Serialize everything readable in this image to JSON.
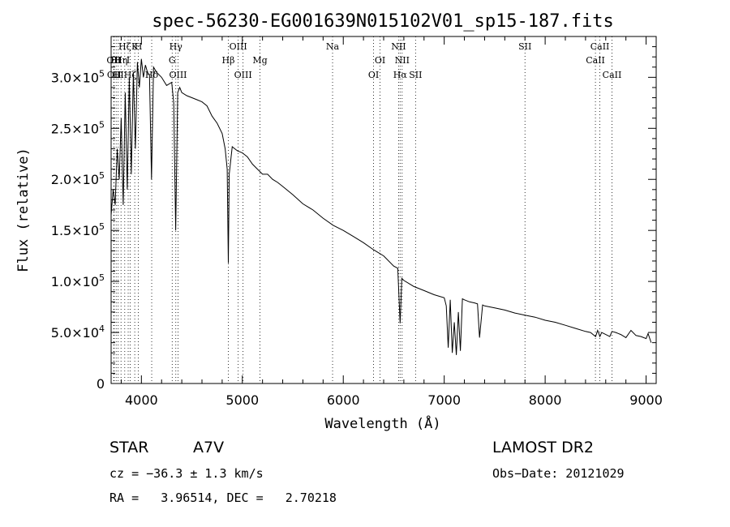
{
  "chart_data": {
    "type": "line",
    "title": "spec-56230-EG001639N015102V01_sp15-187.fits",
    "xlabel": "Wavelength (Å)",
    "ylabel": "Flux (relative)",
    "xlim": [
      3700,
      9100
    ],
    "ylim": [
      0,
      340000
    ],
    "xticks": [
      4000,
      5000,
      6000,
      7000,
      8000,
      9000
    ],
    "xtick_labels": [
      "4000",
      "5000",
      "6000",
      "7000",
      "8000",
      "9000"
    ],
    "yticks": [
      0,
      50000,
      100000,
      150000,
      200000,
      250000,
      300000
    ],
    "ytick_labels": [
      {
        "mant": "0",
        "exp": ""
      },
      {
        "mant": "5.0×10",
        "exp": "4"
      },
      {
        "mant": "1.0×10",
        "exp": "5"
      },
      {
        "mant": "1.5×10",
        "exp": "5"
      },
      {
        "mant": "2.0×10",
        "exp": "5"
      },
      {
        "mant": "2.5×10",
        "exp": "5"
      },
      {
        "mant": "3.0×10",
        "exp": "5"
      }
    ],
    "series": [
      {
        "x": [
          3700,
          3720,
          3740,
          3760,
          3780,
          3800,
          3820,
          3840,
          3860,
          3880,
          3900,
          3920,
          3940,
          3960,
          3980,
          4000,
          4020,
          4040,
          4060,
          4080,
          4100,
          4120,
          4150,
          4200,
          4250,
          4300,
          4320,
          4340,
          4360,
          4380,
          4400,
          4450,
          4500,
          4550,
          4600,
          4650,
          4700,
          4750,
          4800,
          4830,
          4850,
          4861,
          4870,
          4900,
          4950,
          5000,
          5050,
          5100,
          5150,
          5200,
          5250,
          5300,
          5350,
          5400,
          5500,
          5600,
          5700,
          5800,
          5900,
          6000,
          6100,
          6200,
          6300,
          6400,
          6500,
          6540,
          6563,
          6580,
          6600,
          6700,
          6800,
          6900,
          7000,
          7020,
          7040,
          7060,
          7080,
          7100,
          7120,
          7140,
          7160,
          7180,
          7200,
          7250,
          7300,
          7330,
          7350,
          7380,
          7400,
          7500,
          7600,
          7700,
          7800,
          7900,
          8000,
          8100,
          8200,
          8300,
          8400,
          8450,
          8500,
          8520,
          8542,
          8560,
          8600,
          8640,
          8662,
          8700,
          8750,
          8800,
          8850,
          8900,
          8950,
          9000,
          9020,
          9050
        ],
        "y": [
          165000,
          190000,
          175000,
          230000,
          200000,
          260000,
          175000,
          285000,
          190000,
          300000,
          205000,
          305000,
          230000,
          315000,
          290000,
          318000,
          300000,
          312000,
          305000,
          302000,
          200000,
          310000,
          305000,
          300000,
          292000,
          295000,
          275000,
          150000,
          285000,
          290000,
          285000,
          282000,
          280000,
          278000,
          276000,
          272000,
          262000,
          255000,
          245000,
          230000,
          210000,
          118000,
          205000,
          232000,
          228000,
          226000,
          222000,
          215000,
          210000,
          205000,
          205000,
          200000,
          197000,
          193000,
          185000,
          176000,
          170000,
          162000,
          155000,
          150000,
          144000,
          138000,
          131000,
          125000,
          115000,
          113000,
          59000,
          103000,
          101000,
          95000,
          91000,
          87000,
          84000,
          76000,
          35000,
          82000,
          30000,
          60000,
          28000,
          70000,
          32000,
          83000,
          82000,
          80000,
          79000,
          78000,
          45000,
          77000,
          76000,
          74000,
          72000,
          69000,
          67000,
          65000,
          62000,
          60000,
          57000,
          54000,
          51000,
          50000,
          46000,
          52000,
          46000,
          50000,
          48000,
          46000,
          51000,
          50000,
          48000,
          45000,
          52000,
          47000,
          46000,
          44000,
          49000,
          40000
        ]
      }
    ],
    "lines": [
      {
        "wl": 3726,
        "label": "OII",
        "row": 1
      },
      {
        "wl": 3730,
        "label": "OII",
        "row": 2
      },
      {
        "wl": 3750,
        "label": "HI",
        "row": 1
      },
      {
        "wl": 3770,
        "label": "HI",
        "row": 2
      },
      {
        "wl": 3798,
        "label": "Hη",
        "row": 1
      },
      {
        "wl": 3835,
        "label": "Hζ",
        "row": 0
      },
      {
        "wl": 3869,
        "label": "I",
        "row": 1
      },
      {
        "wl": 3889,
        "label": "Hζ",
        "row": 2
      },
      {
        "wl": 3934,
        "label": "K",
        "row": 0
      },
      {
        "wl": 3970,
        "label": "H",
        "row": 0
      },
      {
        "wl": 4102,
        "label": "Hδ",
        "row": 2
      },
      {
        "wl": 4305,
        "label": "G",
        "row": 1
      },
      {
        "wl": 4341,
        "label": "Hγ",
        "row": 0
      },
      {
        "wl": 4363,
        "label": "OIII",
        "row": 2
      },
      {
        "wl": 4861,
        "label": "Hβ",
        "row": 1
      },
      {
        "wl": 4959,
        "label": "OIII",
        "row": 0
      },
      {
        "wl": 5007,
        "label": "OIII",
        "row": 2
      },
      {
        "wl": 5175,
        "label": "Mg",
        "row": 1
      },
      {
        "wl": 5894,
        "label": "Na",
        "row": 0
      },
      {
        "wl": 6300,
        "label": "OI",
        "row": 2
      },
      {
        "wl": 6364,
        "label": "OI",
        "row": 1
      },
      {
        "wl": 6548,
        "label": "NII",
        "row": 0
      },
      {
        "wl": 6563,
        "label": "Hα",
        "row": 2
      },
      {
        "wl": 6583,
        "label": "NII",
        "row": 1
      },
      {
        "wl": 6716,
        "label": "SII",
        "row": 2
      },
      {
        "wl": 7800,
        "label": "SII",
        "row": 0
      },
      {
        "wl": 8498,
        "label": "CaII",
        "row": 1
      },
      {
        "wl": 8542,
        "label": "CaII",
        "row": 0
      },
      {
        "wl": 8662,
        "label": "CaII",
        "row": 2
      }
    ]
  },
  "info": {
    "object_type": "STAR",
    "subclass": "A7V",
    "survey": "LAMOST DR2",
    "redshift_text": "cz = −36.3 ± 1.3 km/s",
    "obs_date_text": "Obs−Date: 20121029",
    "coords_text": "RA =   3.96514, DEC =   2.70218"
  }
}
